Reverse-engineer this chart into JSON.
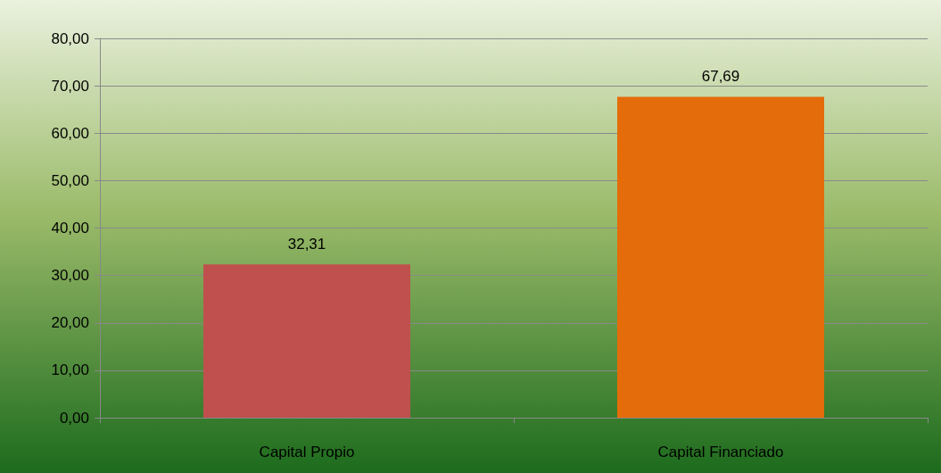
{
  "chart_data": {
    "type": "bar",
    "categories": [
      "Capital Propio",
      "Capital Financiado"
    ],
    "values": [
      32.31,
      67.69
    ],
    "colors": [
      "#c0504d",
      "#e46c0a"
    ],
    "value_labels": [
      "32,31",
      "67,69"
    ],
    "ylim": [
      0,
      80
    ],
    "yticks": [
      {
        "value": 0,
        "label": "0,00"
      },
      {
        "value": 10,
        "label": "10,00"
      },
      {
        "value": 20,
        "label": "20,00"
      },
      {
        "value": 30,
        "label": "30,00"
      },
      {
        "value": 40,
        "label": "40,00"
      },
      {
        "value": 50,
        "label": "50,00"
      },
      {
        "value": 60,
        "label": "60,00"
      },
      {
        "value": 70,
        "label": "70,00"
      },
      {
        "value": 80,
        "label": "80,00"
      }
    ],
    "grid": "y"
  }
}
